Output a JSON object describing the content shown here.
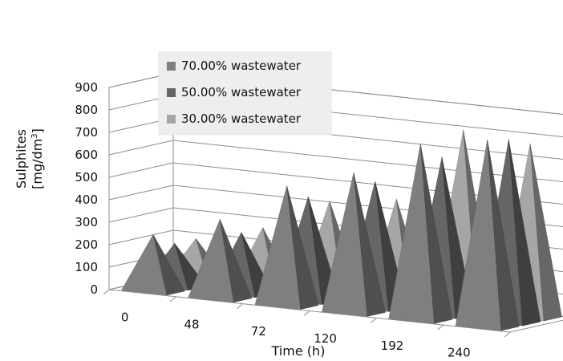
{
  "chart_data": {
    "type": "bar",
    "style": "3d-pyramid",
    "categories": [
      "0",
      "48",
      "72",
      "120",
      "192",
      "240"
    ],
    "series": [
      {
        "name": "70.00% wastewater",
        "color": "#7f7f7f",
        "values": [
          250,
          350,
          530,
          620,
          780,
          830
        ]
      },
      {
        "name": "50.00% wastewater",
        "color": "#666666",
        "values": [
          190,
          270,
          460,
          560,
          700,
          810
        ]
      },
      {
        "name": "30.00% wastewater",
        "color": "#a6a6a6",
        "values": [
          190,
          270,
          420,
          460,
          800,
          770
        ]
      }
    ],
    "ylabel_line1": "Sulphites",
    "ylabel_line2": "[mg/dm",
    "ylabel_sup": "3",
    "ylabel_close": "]",
    "xlabel": "Time (h)",
    "ylim": [
      0,
      900
    ],
    "yticks": [
      "0",
      "100",
      "200",
      "300",
      "400",
      "500",
      "600",
      "700",
      "800",
      "900"
    ],
    "grid": true,
    "legend_position": "top-left"
  }
}
